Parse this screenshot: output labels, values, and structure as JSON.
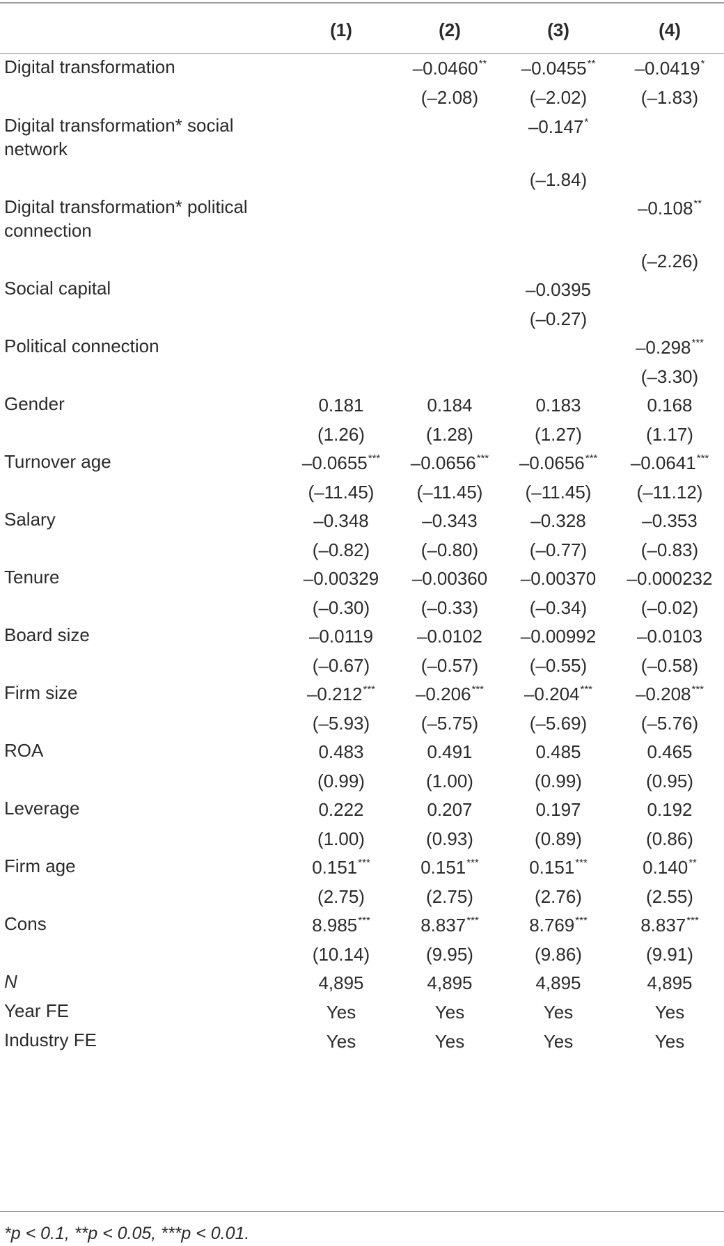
{
  "header": [
    "(1)",
    "(2)",
    "(3)",
    "(4)"
  ],
  "rows": [
    {
      "label": "Digital transformation",
      "cells": [
        {
          "v": "",
          "s": ""
        },
        {
          "v": "–0.0460",
          "s": "**"
        },
        {
          "v": "–0.0455",
          "s": "**"
        },
        {
          "v": "–0.0419",
          "s": "*"
        }
      ]
    },
    {
      "label": "",
      "cells": [
        {
          "v": "",
          "s": ""
        },
        {
          "v": "(–2.08)",
          "s": ""
        },
        {
          "v": "(–2.02)",
          "s": ""
        },
        {
          "v": "(–1.83)",
          "s": ""
        }
      ]
    },
    {
      "label": "Digital transformation* social network",
      "cells": [
        {
          "v": "",
          "s": ""
        },
        {
          "v": "",
          "s": ""
        },
        {
          "v": "–0.147",
          "s": "*"
        },
        {
          "v": "",
          "s": ""
        }
      ]
    },
    {
      "label": "",
      "cells": [
        {
          "v": "",
          "s": ""
        },
        {
          "v": "",
          "s": ""
        },
        {
          "v": "(–1.84)",
          "s": ""
        },
        {
          "v": "",
          "s": ""
        }
      ]
    },
    {
      "label": "Digital transformation* political connection",
      "cells": [
        {
          "v": "",
          "s": ""
        },
        {
          "v": "",
          "s": ""
        },
        {
          "v": "",
          "s": ""
        },
        {
          "v": "–0.108",
          "s": "**"
        }
      ]
    },
    {
      "label": "",
      "cells": [
        {
          "v": "",
          "s": ""
        },
        {
          "v": "",
          "s": ""
        },
        {
          "v": "",
          "s": ""
        },
        {
          "v": "(–2.26)",
          "s": ""
        }
      ]
    },
    {
      "label": "Social capital",
      "cells": [
        {
          "v": "",
          "s": ""
        },
        {
          "v": "",
          "s": ""
        },
        {
          "v": "–0.0395",
          "s": ""
        },
        {
          "v": "",
          "s": ""
        }
      ]
    },
    {
      "label": "",
      "cells": [
        {
          "v": "",
          "s": ""
        },
        {
          "v": "",
          "s": ""
        },
        {
          "v": "(–0.27)",
          "s": ""
        },
        {
          "v": "",
          "s": ""
        }
      ]
    },
    {
      "label": "Political connection",
      "cells": [
        {
          "v": "",
          "s": ""
        },
        {
          "v": "",
          "s": ""
        },
        {
          "v": "",
          "s": ""
        },
        {
          "v": "–0.298",
          "s": "***"
        }
      ]
    },
    {
      "label": "",
      "cells": [
        {
          "v": "",
          "s": ""
        },
        {
          "v": "",
          "s": ""
        },
        {
          "v": "",
          "s": ""
        },
        {
          "v": "(–3.30)",
          "s": ""
        }
      ]
    },
    {
      "label": "Gender",
      "cells": [
        {
          "v": "0.181",
          "s": ""
        },
        {
          "v": "0.184",
          "s": ""
        },
        {
          "v": "0.183",
          "s": ""
        },
        {
          "v": "0.168",
          "s": ""
        }
      ]
    },
    {
      "label": "",
      "cells": [
        {
          "v": "(1.26)",
          "s": ""
        },
        {
          "v": "(1.28)",
          "s": ""
        },
        {
          "v": "(1.27)",
          "s": ""
        },
        {
          "v": "(1.17)",
          "s": ""
        }
      ]
    },
    {
      "label": "Turnover age",
      "cells": [
        {
          "v": "–0.0655",
          "s": "***"
        },
        {
          "v": "–0.0656",
          "s": "***"
        },
        {
          "v": "–0.0656",
          "s": "***"
        },
        {
          "v": "–0.0641",
          "s": "***"
        }
      ]
    },
    {
      "label": "",
      "cells": [
        {
          "v": "(–11.45)",
          "s": ""
        },
        {
          "v": "(–11.45)",
          "s": ""
        },
        {
          "v": "(–11.45)",
          "s": ""
        },
        {
          "v": "(–11.12)",
          "s": ""
        }
      ]
    },
    {
      "label": "Salary",
      "cells": [
        {
          "v": "–0.348",
          "s": ""
        },
        {
          "v": "–0.343",
          "s": ""
        },
        {
          "v": "–0.328",
          "s": ""
        },
        {
          "v": "–0.353",
          "s": ""
        }
      ]
    },
    {
      "label": "",
      "cells": [
        {
          "v": "(–0.82)",
          "s": ""
        },
        {
          "v": "(–0.80)",
          "s": ""
        },
        {
          "v": "(–0.77)",
          "s": ""
        },
        {
          "v": "(–0.83)",
          "s": ""
        }
      ]
    },
    {
      "label": "Tenure",
      "cells": [
        {
          "v": "–0.00329",
          "s": ""
        },
        {
          "v": "–0.00360",
          "s": ""
        },
        {
          "v": "–0.00370",
          "s": ""
        },
        {
          "v": "–0.000232",
          "s": ""
        }
      ]
    },
    {
      "label": "",
      "cells": [
        {
          "v": "(–0.30)",
          "s": ""
        },
        {
          "v": "(–0.33)",
          "s": ""
        },
        {
          "v": "(–0.34)",
          "s": ""
        },
        {
          "v": "(–0.02)",
          "s": ""
        }
      ]
    },
    {
      "label": "Board size",
      "cells": [
        {
          "v": "–0.0119",
          "s": ""
        },
        {
          "v": "–0.0102",
          "s": ""
        },
        {
          "v": "–0.00992",
          "s": ""
        },
        {
          "v": "–0.0103",
          "s": ""
        }
      ]
    },
    {
      "label": "",
      "cells": [
        {
          "v": "(–0.67)",
          "s": ""
        },
        {
          "v": "(–0.57)",
          "s": ""
        },
        {
          "v": "(–0.55)",
          "s": ""
        },
        {
          "v": "(–0.58)",
          "s": ""
        }
      ]
    },
    {
      "label": "Firm size",
      "cells": [
        {
          "v": "–0.212",
          "s": "***"
        },
        {
          "v": "–0.206",
          "s": "***"
        },
        {
          "v": "–0.204",
          "s": "***"
        },
        {
          "v": "–0.208",
          "s": "***"
        }
      ]
    },
    {
      "label": "",
      "cells": [
        {
          "v": "(–5.93)",
          "s": ""
        },
        {
          "v": "(–5.75)",
          "s": ""
        },
        {
          "v": "(–5.69)",
          "s": ""
        },
        {
          "v": "(–5.76)",
          "s": ""
        }
      ]
    },
    {
      "label": "ROA",
      "cells": [
        {
          "v": "0.483",
          "s": ""
        },
        {
          "v": "0.491",
          "s": ""
        },
        {
          "v": "0.485",
          "s": ""
        },
        {
          "v": "0.465",
          "s": ""
        }
      ]
    },
    {
      "label": "",
      "cells": [
        {
          "v": "(0.99)",
          "s": ""
        },
        {
          "v": "(1.00)",
          "s": ""
        },
        {
          "v": "(0.99)",
          "s": ""
        },
        {
          "v": "(0.95)",
          "s": ""
        }
      ]
    },
    {
      "label": "Leverage",
      "cells": [
        {
          "v": "0.222",
          "s": ""
        },
        {
          "v": "0.207",
          "s": ""
        },
        {
          "v": "0.197",
          "s": ""
        },
        {
          "v": "0.192",
          "s": ""
        }
      ]
    },
    {
      "label": "",
      "cells": [
        {
          "v": "(1.00)",
          "s": ""
        },
        {
          "v": "(0.93)",
          "s": ""
        },
        {
          "v": "(0.89)",
          "s": ""
        },
        {
          "v": "(0.86)",
          "s": ""
        }
      ]
    },
    {
      "label": "Firm age",
      "cells": [
        {
          "v": "0.151",
          "s": "***"
        },
        {
          "v": "0.151",
          "s": "***"
        },
        {
          "v": "0.151",
          "s": "***"
        },
        {
          "v": "0.140",
          "s": "**"
        }
      ]
    },
    {
      "label": "",
      "cells": [
        {
          "v": "(2.75)",
          "s": ""
        },
        {
          "v": "(2.75)",
          "s": ""
        },
        {
          "v": "(2.76)",
          "s": ""
        },
        {
          "v": "(2.55)",
          "s": ""
        }
      ]
    },
    {
      "label": "Cons",
      "cells": [
        {
          "v": "8.985",
          "s": "***"
        },
        {
          "v": "8.837",
          "s": "***"
        },
        {
          "v": "8.769",
          "s": "***"
        },
        {
          "v": "8.837",
          "s": "***"
        }
      ]
    },
    {
      "label": "",
      "cells": [
        {
          "v": "(10.14)",
          "s": ""
        },
        {
          "v": "(9.95)",
          "s": ""
        },
        {
          "v": "(9.86)",
          "s": ""
        },
        {
          "v": "(9.91)",
          "s": ""
        }
      ]
    },
    {
      "label": "N",
      "italic": true,
      "cells": [
        {
          "v": "4,895",
          "s": ""
        },
        {
          "v": "4,895",
          "s": ""
        },
        {
          "v": "4,895",
          "s": ""
        },
        {
          "v": "4,895",
          "s": ""
        }
      ]
    },
    {
      "label": "Year FE",
      "cells": [
        {
          "v": "Yes",
          "s": ""
        },
        {
          "v": "Yes",
          "s": ""
        },
        {
          "v": "Yes",
          "s": ""
        },
        {
          "v": "Yes",
          "s": ""
        }
      ]
    },
    {
      "label": "Industry FE",
      "cells": [
        {
          "v": "Yes",
          "s": ""
        },
        {
          "v": "Yes",
          "s": ""
        },
        {
          "v": "Yes",
          "s": ""
        },
        {
          "v": "Yes",
          "s": ""
        }
      ]
    }
  ],
  "footnote": "*p < 0.1, **p < 0.05, ***p < 0.01."
}
